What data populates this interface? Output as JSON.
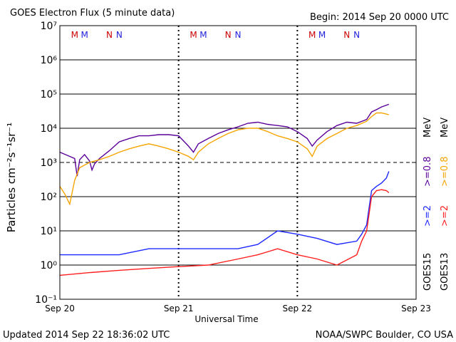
{
  "header": {
    "title": "GOES Electron Flux (5 minute data)",
    "begin": "Begin: 2014 Sep 20 0000 UTC"
  },
  "footer": {
    "updated": "Updated 2014 Sep 22 18:36:02 UTC",
    "credit": "NOAA/SWPC Boulder, CO USA"
  },
  "colors": {
    "goes15_low": "#5a0099",
    "goes13_low": "#f5a500",
    "goes15_high": "#1e28ff",
    "goes13_high": "#ff1e1e",
    "marker_m": "#cc0000",
    "marker_n_blue": "#2222dd",
    "marker_n_red": "#cc0000"
  },
  "chart_data": {
    "type": "line",
    "title": "GOES Electron Flux (5 minute data)",
    "xlabel": "Universal Time",
    "ylabel": "Particles cm⁻²s⁻¹sr⁻¹",
    "yscale": "log",
    "ylim": [
      0.1,
      10000000
    ],
    "xlim": [
      "2014-09-20 00:00",
      "2014-09-23 00:00"
    ],
    "x_ticks": [
      "Sep 20",
      "Sep 21",
      "Sep 22",
      "Sep 23"
    ],
    "y_ticks": [
      "10⁻¹",
      "10⁰",
      "10¹",
      "10²",
      "10³",
      "10⁴",
      "10⁵",
      "10⁶",
      "10⁷"
    ],
    "threshold_flux": 1000,
    "day_boundaries": [
      "2014-09-21",
      "2014-09-22"
    ],
    "markers": [
      {
        "label": "M",
        "x": "2014-09-20 03:00",
        "color_key": "marker_m"
      },
      {
        "label": "M",
        "x": "2014-09-20 05:00",
        "color_key": "marker_n_blue"
      },
      {
        "label": "N",
        "x": "2014-09-20 10:00",
        "color_key": "marker_n_red"
      },
      {
        "label": "N",
        "x": "2014-09-20 12:00",
        "color_key": "marker_n_blue"
      },
      {
        "label": "M",
        "x": "2014-09-21 03:00",
        "color_key": "marker_m"
      },
      {
        "label": "M",
        "x": "2014-09-21 05:00",
        "color_key": "marker_n_blue"
      },
      {
        "label": "N",
        "x": "2014-09-21 10:00",
        "color_key": "marker_n_red"
      },
      {
        "label": "N",
        "x": "2014-09-21 12:00",
        "color_key": "marker_n_blue"
      },
      {
        "label": "M",
        "x": "2014-09-22 03:00",
        "color_key": "marker_m"
      },
      {
        "label": "M",
        "x": "2014-09-22 05:00",
        "color_key": "marker_n_blue"
      },
      {
        "label": "N",
        "x": "2014-09-22 10:00",
        "color_key": "marker_n_red"
      },
      {
        "label": "N",
        "x": "2014-09-22 12:00",
        "color_key": "marker_n_blue"
      }
    ],
    "legend": {
      "goes15": "GOES15",
      "goes13": "GOES13",
      "ge2_blue": ">=2",
      "ge2_red": ">=2",
      "ge08_purple": ">=0.8",
      "ge08_orange": ">=0.8",
      "mev_purple": "MeV",
      "mev_orange": "MeV"
    },
    "series": [
      {
        "name": "GOES15 >=0.8 MeV",
        "color_key": "goes15_low",
        "x": [
          "2014-09-20 00:00",
          "2014-09-20 02:00",
          "2014-09-20 03:00",
          "2014-09-20 03:30",
          "2014-09-20 04:00",
          "2014-09-20 05:00",
          "2014-09-20 06:00",
          "2014-09-20 06:30",
          "2014-09-20 07:00",
          "2014-09-20 08:00",
          "2014-09-20 10:00",
          "2014-09-20 12:00",
          "2014-09-20 14:00",
          "2014-09-20 16:00",
          "2014-09-20 18:00",
          "2014-09-20 20:00",
          "2014-09-20 22:00",
          "2014-09-21 00:00",
          "2014-09-21 02:00",
          "2014-09-21 03:00",
          "2014-09-21 04:00",
          "2014-09-21 06:00",
          "2014-09-21 08:00",
          "2014-09-21 10:00",
          "2014-09-21 12:00",
          "2014-09-21 14:00",
          "2014-09-21 16:00",
          "2014-09-21 18:00",
          "2014-09-21 20:00",
          "2014-09-21 22:00",
          "2014-09-22 00:00",
          "2014-09-22 02:00",
          "2014-09-22 03:00",
          "2014-09-22 04:00",
          "2014-09-22 06:00",
          "2014-09-22 08:00",
          "2014-09-22 10:00",
          "2014-09-22 12:00",
          "2014-09-22 14:00",
          "2014-09-22 15:00",
          "2014-09-22 16:00",
          "2014-09-22 17:00",
          "2014-09-22 18:30"
        ],
        "y": [
          2000,
          1500,
          1300,
          400,
          1200,
          1700,
          1100,
          600,
          900,
          1300,
          2200,
          4000,
          5000,
          6000,
          6000,
          6500,
          6500,
          6000,
          3000,
          2000,
          3500,
          5000,
          7000,
          9000,
          11000,
          14000,
          15000,
          13000,
          12000,
          11000,
          8000,
          5000,
          3000,
          4500,
          8000,
          12000,
          15000,
          14000,
          18000,
          30000,
          35000,
          42000,
          50000
        ]
      },
      {
        "name": "GOES13 >=0.8 MeV",
        "color_key": "goes13_low",
        "x": [
          "2014-09-20 00:00",
          "2014-09-20 01:00",
          "2014-09-20 02:00",
          "2014-09-20 03:00",
          "2014-09-20 04:00",
          "2014-09-20 06:00",
          "2014-09-20 08:00",
          "2014-09-20 10:00",
          "2014-09-20 12:00",
          "2014-09-20 14:00",
          "2014-09-20 16:00",
          "2014-09-20 18:00",
          "2014-09-20 20:00",
          "2014-09-20 22:00",
          "2014-09-21 00:00",
          "2014-09-21 02:00",
          "2014-09-21 03:00",
          "2014-09-21 04:00",
          "2014-09-21 06:00",
          "2014-09-21 08:00",
          "2014-09-21 10:00",
          "2014-09-21 12:00",
          "2014-09-21 14:00",
          "2014-09-21 16:00",
          "2014-09-21 18:00",
          "2014-09-21 20:00",
          "2014-09-21 22:00",
          "2014-09-22 00:00",
          "2014-09-22 02:00",
          "2014-09-22 03:00",
          "2014-09-22 04:00",
          "2014-09-22 06:00",
          "2014-09-22 08:00",
          "2014-09-22 10:00",
          "2014-09-22 12:00",
          "2014-09-22 14:00",
          "2014-09-22 15:00",
          "2014-09-22 16:00",
          "2014-09-22 17:00",
          "2014-09-22 18:30"
        ],
        "y": [
          200,
          120,
          60,
          300,
          700,
          1000,
          1200,
          1500,
          2000,
          2500,
          3000,
          3500,
          3000,
          2500,
          2000,
          1500,
          1200,
          2000,
          3500,
          5000,
          7000,
          9000,
          10000,
          10000,
          8000,
          6000,
          5000,
          4000,
          2500,
          1500,
          3000,
          5000,
          7000,
          10000,
          12000,
          16000,
          22000,
          28000,
          28000,
          25000
        ]
      },
      {
        "name": "GOES15 >=2 MeV",
        "color_key": "goes15_high",
        "x": [
          "2014-09-20 00:00",
          "2014-09-20 06:00",
          "2014-09-20 12:00",
          "2014-09-20 18:00",
          "2014-09-21 00:00",
          "2014-09-21 06:00",
          "2014-09-21 12:00",
          "2014-09-21 16:00",
          "2014-09-21 20:00",
          "2014-09-22 00:00",
          "2014-09-22 04:00",
          "2014-09-22 08:00",
          "2014-09-22 12:00",
          "2014-09-22 13:00",
          "2014-09-22 14:00",
          "2014-09-22 15:00",
          "2014-09-22 16:00",
          "2014-09-22 17:00",
          "2014-09-22 18:00",
          "2014-09-22 18:30"
        ],
        "y": [
          2,
          2,
          2,
          3,
          3,
          3,
          3,
          4,
          10,
          8,
          6,
          4,
          5,
          8,
          15,
          150,
          200,
          250,
          350,
          550
        ]
      },
      {
        "name": "GOES13 >=2 MeV",
        "color_key": "goes13_high",
        "x": [
          "2014-09-20 00:00",
          "2014-09-20 06:00",
          "2014-09-20 12:00",
          "2014-09-20 18:00",
          "2014-09-21 00:00",
          "2014-09-21 06:00",
          "2014-09-21 12:00",
          "2014-09-21 16:00",
          "2014-09-21 20:00",
          "2014-09-22 00:00",
          "2014-09-22 04:00",
          "2014-09-22 08:00",
          "2014-09-22 12:00",
          "2014-09-22 13:00",
          "2014-09-22 14:00",
          "2014-09-22 15:00",
          "2014-09-22 16:00",
          "2014-09-22 17:00",
          "2014-09-22 18:00",
          "2014-09-22 18:30"
        ],
        "y": [
          0.5,
          0.6,
          0.7,
          0.8,
          0.9,
          1,
          1.5,
          2,
          3,
          2,
          1.5,
          1,
          2,
          5,
          10,
          100,
          150,
          160,
          150,
          130
        ]
      }
    ]
  }
}
